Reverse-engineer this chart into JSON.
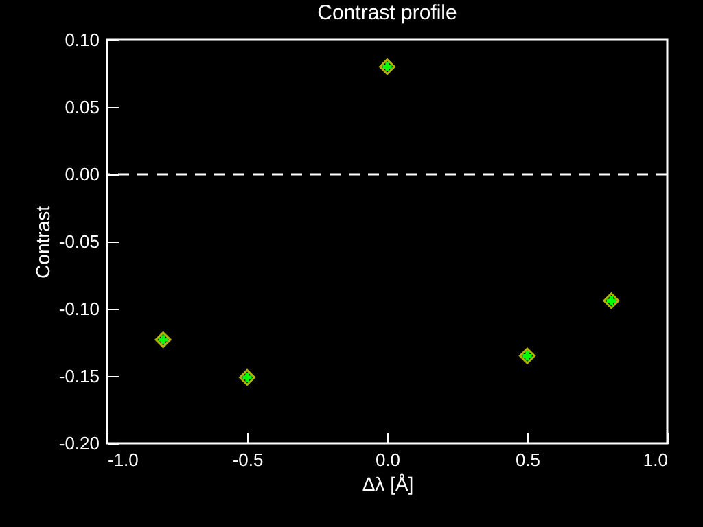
{
  "chart_data": {
    "type": "scatter",
    "title": "Contrast profile",
    "xlabel": "Δλ [Å]",
    "ylabel": "Contrast",
    "x": [
      -0.8,
      -0.5,
      0,
      0.5,
      0.8
    ],
    "series": [
      {
        "color": "#ffff00",
        "marker": "diamond",
        "values": [
          -0.123,
          -0.151,
          0.08,
          -0.135,
          -0.094
        ]
      },
      {
        "color": "#00ff00",
        "marker": "cross",
        "values": [
          -0.123,
          -0.151,
          0.08,
          -0.135,
          -0.094
        ]
      }
    ],
    "xlim": [
      -1,
      1
    ],
    "xticks": [
      {
        "value": -1,
        "label": "-1.0"
      },
      -0.5,
      {
        "value": 0,
        "label": "0.0"
      },
      0.5,
      {
        "value": 1,
        "label": "1.0"
      }
    ],
    "ylim": [
      -0.2,
      0.1
    ],
    "yticks": [
      {
        "value": -0.2,
        "label": "-0.20"
      },
      -0.15,
      {
        "value": -0.1,
        "label": "-0.10"
      },
      -0.05,
      {
        "value": 0,
        "label": "0.00"
      },
      0.05,
      {
        "value": 0.1,
        "label": "0.10"
      }
    ],
    "ref_lines": [
      {
        "axis": "y",
        "value": 0,
        "color": "#ffffff",
        "line_style": "dashed"
      }
    ],
    "grid": false
  }
}
